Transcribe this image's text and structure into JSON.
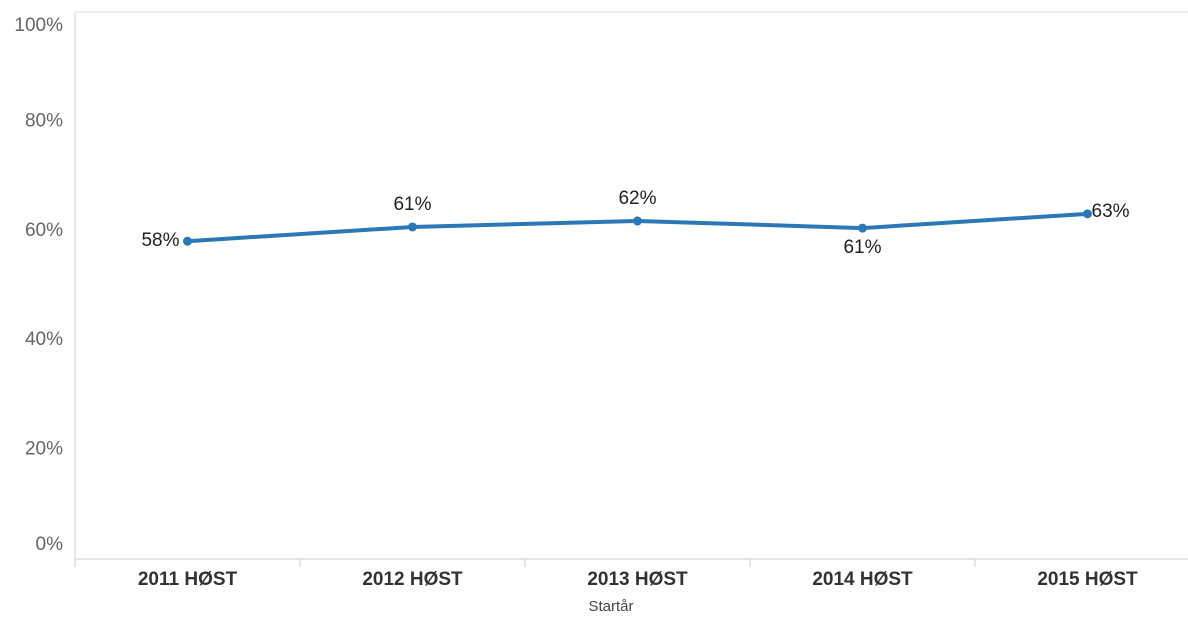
{
  "chart_data": {
    "type": "line",
    "x_label": "Startår",
    "categories": [
      "2011 HØST",
      "2012 HØST",
      "2013 HØST",
      "2014 HØST",
      "2015 HØST"
    ],
    "series": [
      {
        "color": "#2a78b6",
        "values": [
          58.1,
          60.7,
          61.8,
          60.5,
          63.1
        ],
        "value_labels": [
          "58%",
          "61%",
          "62%",
          "61%",
          "63%"
        ]
      }
    ],
    "ylim": [
      0,
      100
    ],
    "yticks": [
      {
        "value": 0,
        "label": "0%"
      },
      {
        "value": 20,
        "label": "20%"
      },
      {
        "value": 40,
        "label": "40%"
      },
      {
        "value": 60,
        "label": "60%"
      },
      {
        "value": 80,
        "label": "80%"
      },
      {
        "value": 100,
        "label": "100%"
      }
    ]
  }
}
